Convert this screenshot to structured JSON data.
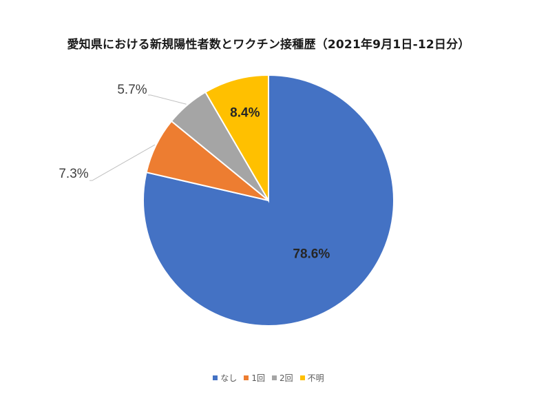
{
  "chart_data": {
    "type": "pie",
    "title": "愛知県における新規陽性者数とワクチン接種歴（2021年9月1日-12日分）",
    "categories": [
      "なし",
      "1回",
      "2回",
      "不明"
    ],
    "values": [
      78.6,
      7.3,
      5.7,
      8.4
    ],
    "labels": [
      "78.6%",
      "7.3%",
      "5.7%",
      "8.4%"
    ],
    "colors": [
      "#4472C4",
      "#ED7D31",
      "#A5A5A5",
      "#FFC000"
    ],
    "start_angle_deg": 0,
    "direction": "clockwise",
    "legend_position": "bottom"
  }
}
